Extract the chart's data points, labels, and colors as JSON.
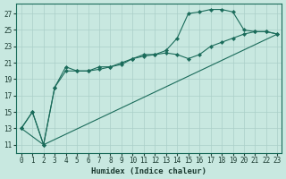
{
  "xlabel": "Humidex (Indice chaleur)",
  "background_color": "#c8e8e0",
  "grid_color": "#aacfc8",
  "line_color": "#1a6b5a",
  "xlim": [
    -0.5,
    23.4
  ],
  "ylim": [
    10.0,
    28.2
  ],
  "x_ticks": [
    0,
    1,
    2,
    3,
    4,
    5,
    6,
    7,
    8,
    9,
    10,
    11,
    12,
    13,
    14,
    15,
    16,
    17,
    18,
    19,
    20,
    21,
    22,
    23
  ],
  "y_ticks": [
    11,
    13,
    15,
    17,
    19,
    21,
    23,
    25,
    27
  ],
  "line1_x": [
    0,
    1,
    2,
    3,
    4,
    5,
    6,
    7,
    8,
    9,
    10,
    11,
    12,
    13,
    14,
    15,
    16,
    17,
    18,
    19,
    20,
    21,
    22,
    23
  ],
  "line1_y": [
    13,
    15,
    11,
    18,
    20,
    20,
    20,
    20.5,
    20.5,
    21,
    21.5,
    22,
    22,
    22.5,
    24,
    27,
    27.2,
    27.5,
    27.5,
    27.2,
    25,
    24.8,
    24.8,
    24.5
  ],
  "line2_x": [
    0,
    1,
    2,
    3,
    4,
    5,
    6,
    7,
    8,
    9,
    10,
    11,
    12,
    13,
    14,
    15,
    16,
    17,
    18,
    19,
    20,
    21,
    22,
    23
  ],
  "line2_y": [
    13,
    15,
    11,
    18,
    20.5,
    20,
    20,
    20.2,
    20.5,
    20.8,
    21.5,
    21.8,
    22,
    22.2,
    22,
    21.5,
    22,
    23,
    23.5,
    24,
    24.5,
    24.8,
    24.8,
    24.5
  ],
  "line3_x": [
    0,
    2,
    23
  ],
  "line3_y": [
    13,
    11,
    24.5
  ]
}
